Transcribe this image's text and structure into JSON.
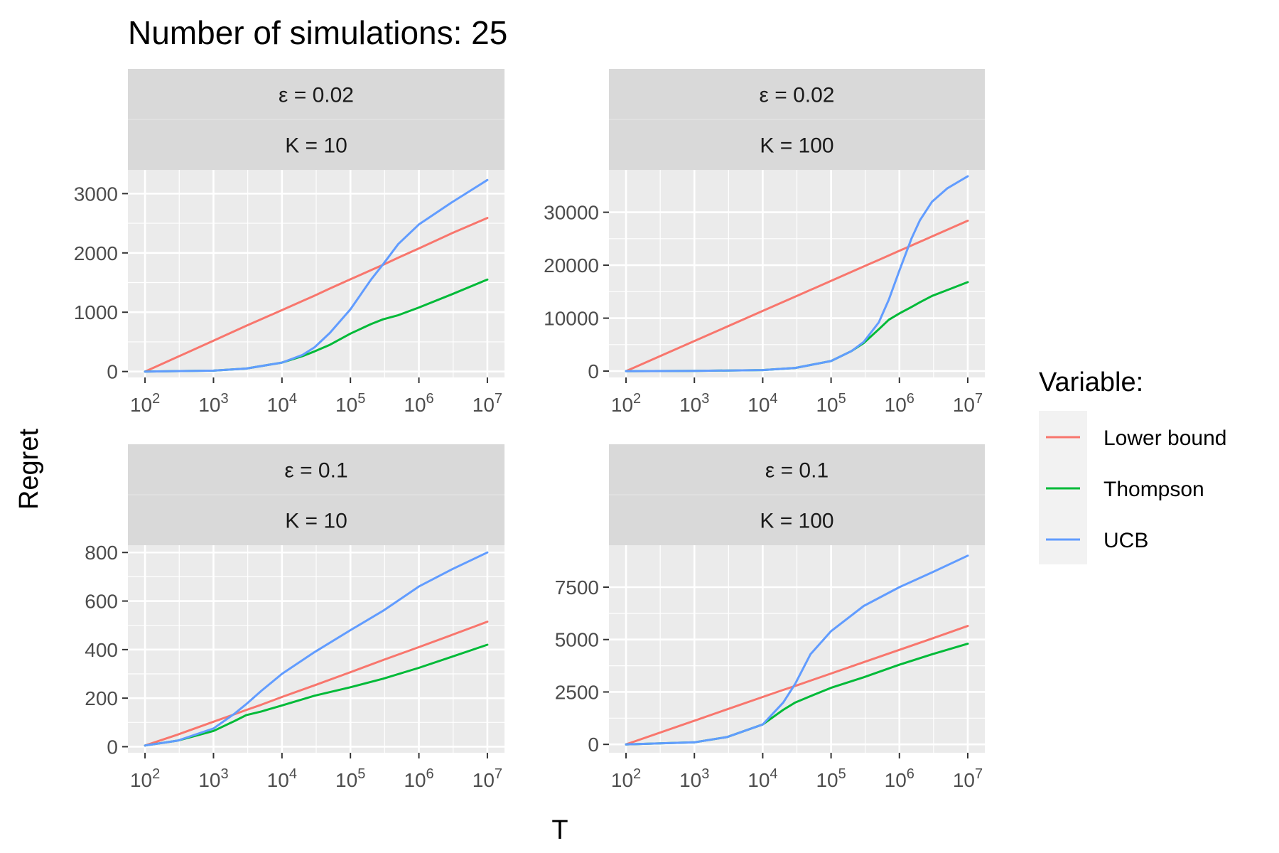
{
  "chart_data": {
    "type": "line",
    "title": "Number of simulations: 25",
    "xlabel": "T",
    "ylabel": "Regret",
    "x_scale": "log10",
    "x_ticks": [
      {
        "value": 100,
        "base": "10",
        "exp": "2"
      },
      {
        "value": 1000,
        "base": "10",
        "exp": "3"
      },
      {
        "value": 10000,
        "base": "10",
        "exp": "4"
      },
      {
        "value": 100000,
        "base": "10",
        "exp": "5"
      },
      {
        "value": 1000000,
        "base": "10",
        "exp": "6"
      },
      {
        "value": 10000000,
        "base": "10",
        "exp": "7"
      }
    ],
    "legend": {
      "title": "Variable:",
      "position": "right",
      "entries": [
        {
          "name": "Lower bound",
          "color": "#F8766D"
        },
        {
          "name": "Thompson",
          "color": "#00BA38"
        },
        {
          "name": "UCB",
          "color": "#619CFF"
        }
      ]
    },
    "colors": {
      "panel_background": "#EBEBEB",
      "strip_background": "#D9D9D9",
      "grid": "#FFFFFF",
      "text": "#000000",
      "tick_text": "#4D4D4D"
    },
    "panels": [
      {
        "strip_epsilon": "ε = 0.02",
        "strip_k": "K = 10",
        "ylim": [
          -100,
          3400
        ],
        "y_ticks": [
          0,
          1000,
          2000,
          3000
        ],
        "y_tick_labels": [
          "0",
          "1000",
          "2000",
          "3000"
        ],
        "x": [
          100,
          1000,
          3000,
          10000,
          20000,
          30000,
          50000,
          100000,
          200000,
          300000,
          500000,
          1000000,
          3000000,
          10000000
        ],
        "series": [
          {
            "name": "Lower bound",
            "values": [
              0,
              520,
              770,
              1035,
              1190,
              1280,
              1400,
              1555,
              1710,
              1800,
              1920,
              2075,
              2330,
              2590
            ]
          },
          {
            "name": "Thompson",
            "values": [
              0,
              15,
              50,
              150,
              260,
              340,
              450,
              640,
              800,
              880,
              950,
              1080,
              1300,
              1550
            ]
          },
          {
            "name": "UCB",
            "values": [
              0,
              15,
              50,
              150,
              280,
              410,
              650,
              1050,
              1550,
              1810,
              2150,
              2480,
              2850,
              3230
            ]
          }
        ]
      },
      {
        "strip_epsilon": "ε = 0.02",
        "strip_k": "K = 100",
        "ylim": [
          -1200,
          38000
        ],
        "y_ticks": [
          0,
          10000,
          20000,
          30000
        ],
        "y_tick_labels": [
          "0",
          "10000",
          "20000",
          "30000"
        ],
        "x": [
          100,
          1000,
          10000,
          30000,
          100000,
          200000,
          300000,
          500000,
          700000,
          1000000,
          1500000,
          2000000,
          3000000,
          5000000,
          10000000
        ],
        "series": [
          {
            "name": "Lower bound",
            "values": [
              0,
              5680,
              11360,
              14070,
              17040,
              18750,
              19750,
              21010,
              21840,
              22720,
              23720,
              24430,
              25430,
              26690,
              28400
            ]
          },
          {
            "name": "Thompson",
            "values": [
              0,
              30,
              200,
              600,
              1900,
              3800,
              5300,
              7900,
              9700,
              10900,
              12100,
              13000,
              14200,
              15300,
              16800
            ]
          },
          {
            "name": "UCB",
            "values": [
              0,
              30,
              200,
              600,
              1900,
              3800,
              5500,
              9200,
              13500,
              19000,
              25000,
              28500,
              32000,
              34500,
              36800
            ]
          }
        ]
      },
      {
        "strip_epsilon": "ε = 0.1",
        "strip_k": "K = 10",
        "ylim": [
          -25,
          830
        ],
        "y_ticks": [
          0,
          200,
          400,
          600,
          800
        ],
        "y_tick_labels": [
          "0",
          "200",
          "400",
          "600",
          "800"
        ],
        "x": [
          100,
          300,
          1000,
          2000,
          3000,
          5000,
          10000,
          30000,
          100000,
          300000,
          1000000,
          3000000,
          10000000
        ],
        "series": [
          {
            "name": "Lower bound",
            "values": [
              5,
              50,
              103,
              133,
              151,
              173,
              205,
              253,
              307,
              357,
              410,
              460,
              515
            ]
          },
          {
            "name": "Thompson",
            "values": [
              5,
              25,
              65,
              105,
              130,
              145,
              170,
              210,
              245,
              280,
              325,
              370,
              420
            ]
          },
          {
            "name": "UCB",
            "values": [
              5,
              25,
              75,
              135,
              175,
              230,
              300,
              390,
              480,
              560,
              660,
              730,
              800
            ]
          }
        ]
      },
      {
        "strip_epsilon": "ε = 0.1",
        "strip_k": "K = 100",
        "ylim": [
          -400,
          9500
        ],
        "y_ticks": [
          0,
          2500,
          5000,
          7500
        ],
        "y_tick_labels": [
          "0",
          "2500",
          "5000",
          "7500"
        ],
        "x": [
          100,
          1000,
          3000,
          10000,
          20000,
          30000,
          50000,
          100000,
          300000,
          1000000,
          3000000,
          10000000
        ],
        "series": [
          {
            "name": "Lower bound",
            "values": [
              0,
              1130,
              1670,
              2260,
              2600,
              2790,
              3040,
              3380,
              3920,
              4510,
              5050,
              5650
            ]
          },
          {
            "name": "Thompson",
            "values": [
              0,
              100,
              350,
              950,
              1650,
              2000,
              2300,
              2700,
              3200,
              3800,
              4300,
              4800
            ]
          },
          {
            "name": "UCB",
            "values": [
              0,
              100,
              350,
              950,
              2000,
              2900,
              4300,
              5400,
              6600,
              7500,
              8200,
              9000
            ]
          }
        ]
      }
    ]
  }
}
